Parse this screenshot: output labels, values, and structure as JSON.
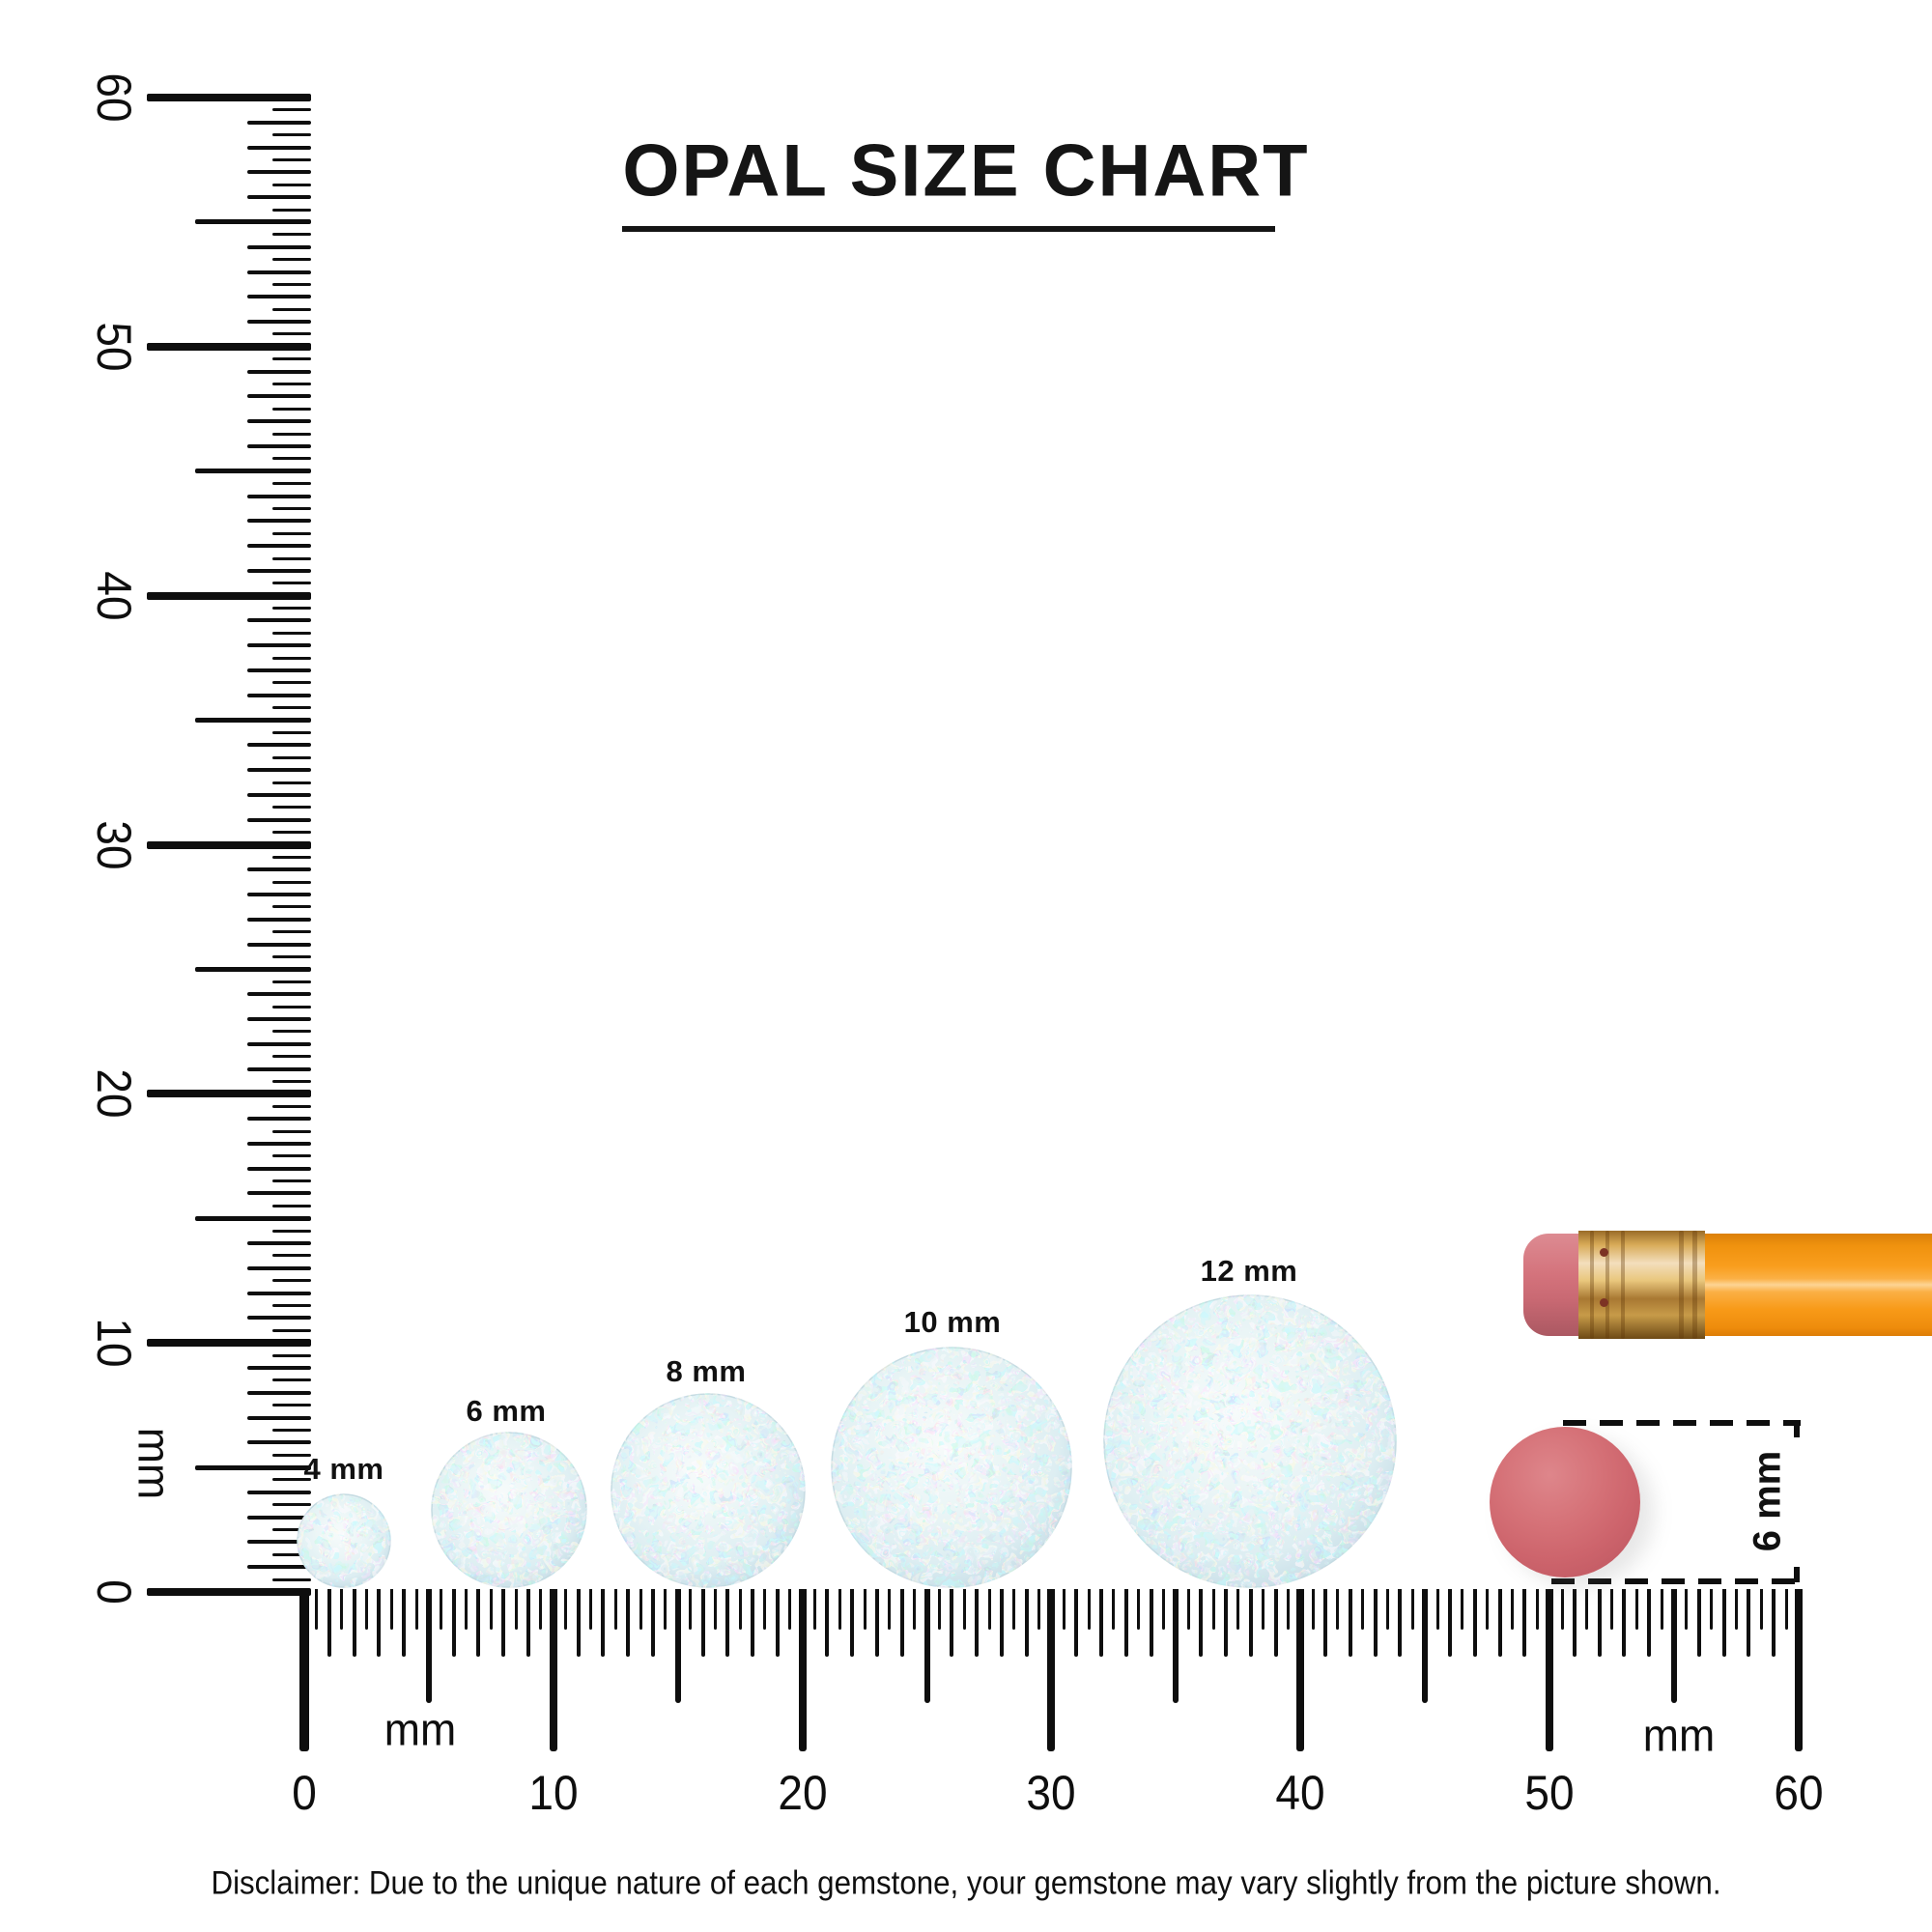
{
  "title": {
    "text": "OPAL SIZE CHART"
  },
  "rulers": {
    "vertical": {
      "tick_labels": [
        "0",
        "10",
        "20",
        "30",
        "40",
        "50",
        "60"
      ],
      "unit_label": "mm"
    },
    "horizontal": {
      "tick_labels": [
        "0",
        "10",
        "20",
        "30",
        "40",
        "50",
        "60"
      ],
      "unit_label_left": "mm",
      "unit_label_right": "mm"
    }
  },
  "opals": [
    {
      "label": "4 mm",
      "size_mm": 4
    },
    {
      "label": "6 mm",
      "size_mm": 6
    },
    {
      "label": "8 mm",
      "size_mm": 8
    },
    {
      "label": "10 mm",
      "size_mm": 10
    },
    {
      "label": "12 mm",
      "size_mm": 12
    }
  ],
  "reference_objects": {
    "pencil": "pencil-with-eraser-icon",
    "eraser_disc": {
      "dimension_label": "6 mm",
      "size_mm": 6
    }
  },
  "disclaimer": {
    "text": "Disclaimer: Due to the unique nature of each gemstone, your gemstone may vary slightly from the picture shown."
  },
  "colors": {
    "ink": "#0e0e0e",
    "pencil_body": "#f89c1f",
    "pencil_ferrule": "#d9ab5e",
    "pencil_eraser": "#d4737c",
    "eraser_disc": "#cd646c",
    "opal_base": "#e9f5f6"
  }
}
